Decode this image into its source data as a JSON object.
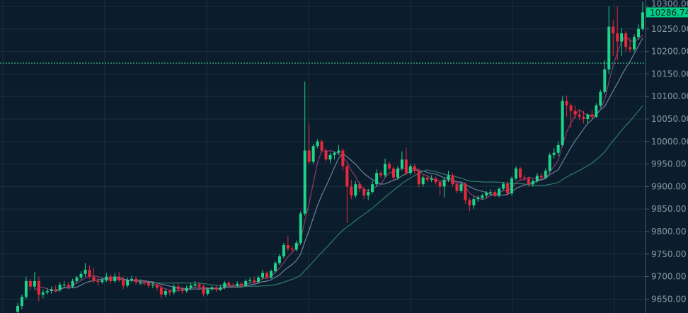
{
  "chart_data": {
    "type": "candlestick",
    "title": "",
    "xlabel": "",
    "ylabel": "",
    "ylim": [
      9625,
      10310
    ],
    "y_ticks": [
      "10300.00",
      "10250.00",
      "10200.00",
      "10150.00",
      "10100.00",
      "10050.00",
      "10000.00",
      "9950.00",
      "9900.00",
      "9850.00",
      "9800.00",
      "9750.00",
      "9700.00",
      "9650.00"
    ],
    "grid": true,
    "colors": {
      "background": "#0b1d2c",
      "grid": "#1a3040",
      "up": "#1fd38a",
      "down": "#e8283b",
      "axis_text": "#8a96a3",
      "last_price_bg": "#00d084",
      "ref_line": "#3fd9a0"
    },
    "last_price": {
      "value": 10286.74,
      "label": "10286.74"
    },
    "reference_line": 10174,
    "moving_averages": [
      {
        "period": 5,
        "color": "#8a3a6e"
      },
      {
        "period": 10,
        "color": "#6f7f9c"
      },
      {
        "period": 30,
        "color": "#2f7a6a"
      }
    ],
    "candles": [
      [
        9622,
        9642,
        9615,
        9635
      ],
      [
        9635,
        9660,
        9628,
        9655
      ],
      [
        9655,
        9700,
        9650,
        9690
      ],
      [
        9690,
        9695,
        9670,
        9678
      ],
      [
        9678,
        9710,
        9672,
        9690
      ],
      [
        9690,
        9700,
        9645,
        9660
      ],
      [
        9660,
        9672,
        9652,
        9665
      ],
      [
        9665,
        9675,
        9660,
        9668
      ],
      [
        9668,
        9678,
        9662,
        9672
      ],
      [
        9672,
        9680,
        9665,
        9670
      ],
      [
        9670,
        9688,
        9666,
        9682
      ],
      [
        9682,
        9690,
        9675,
        9682
      ],
      [
        9682,
        9688,
        9672,
        9678
      ],
      [
        9678,
        9695,
        9674,
        9690
      ],
      [
        9690,
        9702,
        9685,
        9698
      ],
      [
        9698,
        9712,
        9692,
        9706
      ],
      [
        9706,
        9730,
        9700,
        9715
      ],
      [
        9715,
        9725,
        9695,
        9700
      ],
      [
        9700,
        9720,
        9685,
        9690
      ],
      [
        9690,
        9698,
        9680,
        9688
      ],
      [
        9688,
        9698,
        9684,
        9692
      ],
      [
        9692,
        9708,
        9688,
        9700
      ],
      [
        9700,
        9705,
        9684,
        9690
      ],
      [
        9690,
        9708,
        9686,
        9700
      ],
      [
        9700,
        9710,
        9688,
        9692
      ],
      [
        9692,
        9700,
        9672,
        9680
      ],
      [
        9680,
        9698,
        9676,
        9692
      ],
      [
        9692,
        9702,
        9688,
        9695
      ],
      [
        9695,
        9700,
        9682,
        9688
      ],
      [
        9688,
        9694,
        9682,
        9688
      ],
      [
        9688,
        9692,
        9680,
        9686
      ],
      [
        9686,
        9690,
        9675,
        9680
      ],
      [
        9680,
        9688,
        9674,
        9682
      ],
      [
        9682,
        9686,
        9668,
        9675
      ],
      [
        9675,
        9680,
        9652,
        9660
      ],
      [
        9660,
        9672,
        9655,
        9668
      ],
      [
        9668,
        9672,
        9658,
        9665
      ],
      [
        9665,
        9684,
        9660,
        9678
      ],
      [
        9678,
        9685,
        9666,
        9672
      ],
      [
        9672,
        9678,
        9662,
        9668
      ],
      [
        9668,
        9680,
        9664,
        9675
      ],
      [
        9675,
        9686,
        9670,
        9680
      ],
      [
        9680,
        9690,
        9676,
        9683
      ],
      [
        9683,
        9688,
        9670,
        9678
      ],
      [
        9678,
        9682,
        9656,
        9662
      ],
      [
        9662,
        9676,
        9658,
        9672
      ],
      [
        9672,
        9680,
        9668,
        9676
      ],
      [
        9676,
        9680,
        9666,
        9671
      ],
      [
        9671,
        9680,
        9668,
        9676
      ],
      [
        9676,
        9690,
        9672,
        9686
      ],
      [
        9686,
        9690,
        9676,
        9681
      ],
      [
        9681,
        9686,
        9676,
        9680
      ],
      [
        9680,
        9690,
        9677,
        9684
      ],
      [
        9684,
        9688,
        9676,
        9680
      ],
      [
        9680,
        9694,
        9677,
        9690
      ],
      [
        9690,
        9698,
        9686,
        9692
      ],
      [
        9692,
        9700,
        9684,
        9688
      ],
      [
        9688,
        9702,
        9685,
        9698
      ],
      [
        9698,
        9715,
        9694,
        9708
      ],
      [
        9708,
        9712,
        9694,
        9698
      ],
      [
        9698,
        9716,
        9695,
        9712
      ],
      [
        9712,
        9734,
        9708,
        9730
      ],
      [
        9730,
        9750,
        9726,
        9745
      ],
      [
        9745,
        9775,
        9740,
        9770
      ],
      [
        9770,
        9790,
        9756,
        9762
      ],
      [
        9762,
        9768,
        9754,
        9760
      ],
      [
        9760,
        9780,
        9756,
        9775
      ],
      [
        9775,
        9845,
        9770,
        9840
      ],
      [
        9840,
        10133,
        9835,
        9980
      ],
      [
        9980,
        10040,
        9950,
        9955
      ],
      [
        9955,
        9995,
        9950,
        9990
      ],
      [
        9990,
        10005,
        9985,
        10000
      ],
      [
        10000,
        10004,
        9975,
        9980
      ],
      [
        9980,
        9985,
        9955,
        9960
      ],
      [
        9960,
        9975,
        9952,
        9970
      ],
      [
        9970,
        9978,
        9960,
        9975
      ],
      [
        9975,
        9992,
        9970,
        9980
      ],
      [
        9980,
        9985,
        9935,
        9945
      ],
      [
        9945,
        9950,
        9819,
        9900
      ],
      [
        9900,
        9915,
        9872,
        9880
      ],
      [
        9880,
        9912,
        9875,
        9905
      ],
      [
        9905,
        9910,
        9888,
        9895
      ],
      [
        9895,
        9898,
        9872,
        9880
      ],
      [
        9880,
        9895,
        9870,
        9888
      ],
      [
        9888,
        9912,
        9884,
        9905
      ],
      [
        9905,
        9938,
        9900,
        9930
      ],
      [
        9930,
        9935,
        9918,
        9925
      ],
      [
        9925,
        9962,
        9920,
        9950
      ],
      [
        9950,
        9955,
        9935,
        9940
      ],
      [
        9940,
        9945,
        9912,
        9920
      ],
      [
        9920,
        9945,
        9915,
        9940
      ],
      [
        9940,
        9978,
        9935,
        9960
      ],
      [
        9960,
        9986,
        9925,
        9930
      ],
      [
        9930,
        9950,
        9926,
        9945
      ],
      [
        9945,
        9950,
        9928,
        9935
      ],
      [
        9935,
        9940,
        9898,
        9905
      ],
      [
        9905,
        9925,
        9900,
        9920
      ],
      [
        9920,
        9925,
        9910,
        9915
      ],
      [
        9915,
        9925,
        9910,
        9918
      ],
      [
        9918,
        9922,
        9904,
        9910
      ],
      [
        9910,
        9914,
        9880,
        9900
      ],
      [
        9900,
        9920,
        9876,
        9915
      ],
      [
        9915,
        9935,
        9910,
        9925
      ],
      [
        9925,
        9930,
        9900,
        9905
      ],
      [
        9905,
        9910,
        9885,
        9890
      ],
      [
        9890,
        9910,
        9886,
        9905
      ],
      [
        9905,
        9910,
        9862,
        9870
      ],
      [
        9870,
        9875,
        9845,
        9858
      ],
      [
        9858,
        9878,
        9850,
        9872
      ],
      [
        9872,
        9880,
        9866,
        9875
      ],
      [
        9875,
        9884,
        9870,
        9880
      ],
      [
        9880,
        9890,
        9874,
        9886
      ],
      [
        9886,
        9894,
        9880,
        9888
      ],
      [
        9888,
        9892,
        9876,
        9880
      ],
      [
        9880,
        9898,
        9876,
        9895
      ],
      [
        9895,
        9910,
        9890,
        9906
      ],
      [
        9906,
        9912,
        9880,
        9885
      ],
      [
        9885,
        9922,
        9880,
        9918
      ],
      [
        9918,
        9945,
        9914,
        9940
      ],
      [
        9940,
        9944,
        9915,
        9920
      ],
      [
        9920,
        9926,
        9912,
        9918
      ],
      [
        9918,
        9922,
        9900,
        9905
      ],
      [
        9905,
        9916,
        9900,
        9912
      ],
      [
        9912,
        9930,
        9908,
        9924
      ],
      [
        9924,
        9930,
        9914,
        9920
      ],
      [
        9920,
        9940,
        9916,
        9935
      ],
      [
        9935,
        9975,
        9930,
        9970
      ],
      [
        9970,
        9985,
        9962,
        9975
      ],
      [
        9975,
        10000,
        9968,
        9992
      ],
      [
        9992,
        10100,
        9988,
        10090
      ],
      [
        10090,
        10102,
        10055,
        10080
      ],
      [
        10080,
        10085,
        10030,
        10068
      ],
      [
        10068,
        10080,
        10050,
        10060
      ],
      [
        10060,
        10072,
        10048,
        10055
      ],
      [
        10055,
        10068,
        10040,
        10050
      ],
      [
        10050,
        10062,
        10040,
        10060
      ],
      [
        10060,
        10070,
        10050,
        10055
      ],
      [
        10055,
        10085,
        10052,
        10080
      ],
      [
        10080,
        10115,
        10076,
        10110
      ],
      [
        10110,
        10180,
        10105,
        10160
      ],
      [
        10160,
        10300,
        10150,
        10255
      ],
      [
        10255,
        10270,
        10190,
        10240
      ],
      [
        10240,
        10300,
        10180,
        10222
      ],
      [
        10222,
        10252,
        10190,
        10240
      ],
      [
        10240,
        10245,
        10200,
        10210
      ],
      [
        10210,
        10230,
        10198,
        10205
      ],
      [
        10205,
        10238,
        10200,
        10232
      ],
      [
        10232,
        10260,
        10226,
        10250
      ],
      [
        10250,
        10310,
        10245,
        10286.74
      ]
    ]
  }
}
